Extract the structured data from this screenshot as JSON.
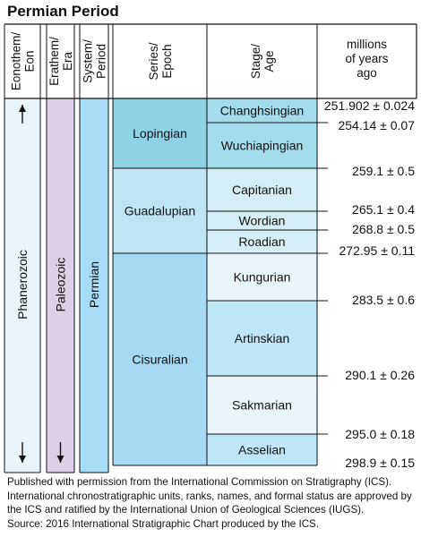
{
  "title": "Permian Period",
  "headers": {
    "eon": "Eonothem/ Eon",
    "era": "Erathem/ Era",
    "period": "System/ Period",
    "epoch": "Series/ Epoch",
    "stage": "Stage/ Age",
    "age": "millions of years ago"
  },
  "eon": "Phanerozoic",
  "era": "Paleozoic",
  "period": "Permian",
  "epochs": [
    "Lopingian",
    "Guadalupian",
    "Cisuralian"
  ],
  "stages": [
    {
      "name": "Changhsingian",
      "epoch": 0
    },
    {
      "name": "Wuchiapingian",
      "epoch": 0
    },
    {
      "name": "Capitanian",
      "epoch": 1
    },
    {
      "name": "Wordian",
      "epoch": 1
    },
    {
      "name": "Roadian",
      "epoch": 1
    },
    {
      "name": "Kungurian",
      "epoch": 2
    },
    {
      "name": "Artinskian",
      "epoch": 2
    },
    {
      "name": "Sakmarian",
      "epoch": 2
    },
    {
      "name": "Asselian",
      "epoch": 2
    }
  ],
  "ages": [
    "251.902 ± 0.024",
    "254.14 ± 0.07",
    "259.1 ± 0.5",
    "265.1 ± 0.4",
    "268.8 ± 0.5",
    "272.95 ± 0.11",
    "283.5 ± 0.6",
    "290.1 ± 0.26",
    "295.0 ± 0.18",
    "298.9 ± 0.15"
  ],
  "colors": {
    "eon": "#e9f3fb",
    "era": "#dccfe6",
    "period": "#a8dcf6",
    "epoch_lopingian": "#8fd2e4",
    "epoch_guadalupian": "#bfe5f4",
    "epoch_cisuralian": "#a6d9f2",
    "stage_lopingian": "#a3dcea",
    "stage_guadalupian": "#d4eef8",
    "stage_cisuralian_light": "#e8f6fc",
    "stage_cisuralian": "#bfe6f7"
  },
  "footnote": "Published with permission from the International Commission on Stratigraphy (ICS). International chronostratigraphic units, ranks, names, and formal status are approved by the ICS and ratified by the International Union of Geological Sciences (IUGS).",
  "source": "Source: 2016 International Stratigraphic Chart produced by the ICS."
}
